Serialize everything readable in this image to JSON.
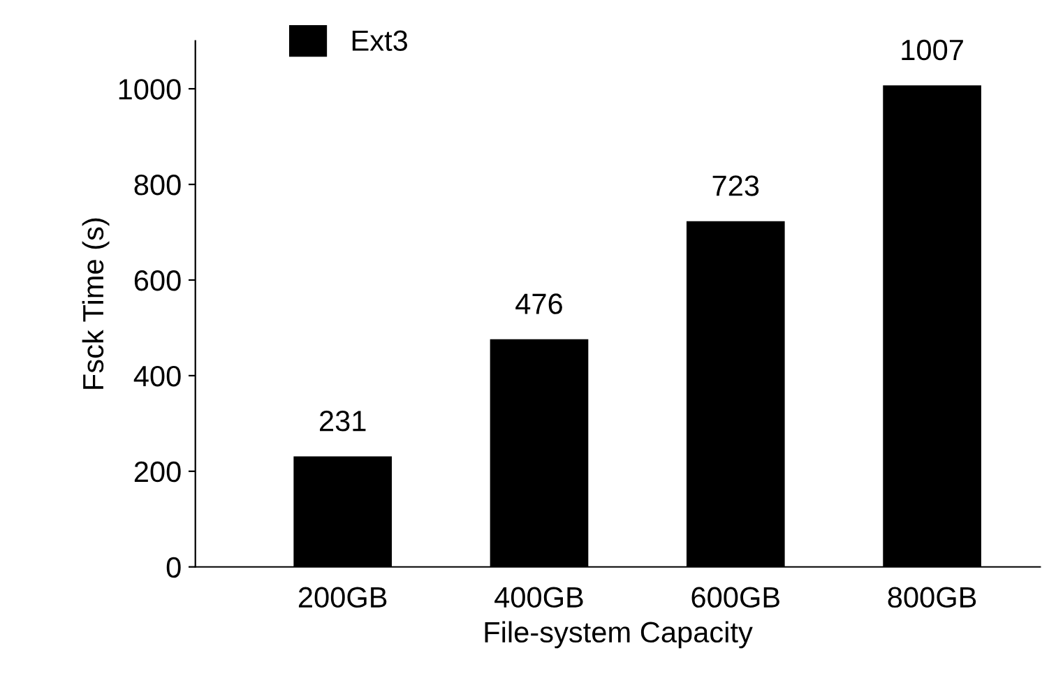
{
  "chart_data": {
    "type": "bar",
    "xlabel": "File-system Capacity",
    "ylabel": "Fsck Time (s)",
    "categories": [
      "200GB",
      "400GB",
      "600GB",
      "800GB"
    ],
    "series": [
      {
        "name": "Ext3",
        "color": "#000000",
        "values": [
          231,
          476,
          723,
          1007
        ]
      }
    ],
    "ylim": [
      0,
      1100
    ],
    "yticks": [
      0,
      200,
      400,
      600,
      800,
      1000
    ],
    "data_labels": true,
    "grid": false,
    "legend": "top left"
  }
}
